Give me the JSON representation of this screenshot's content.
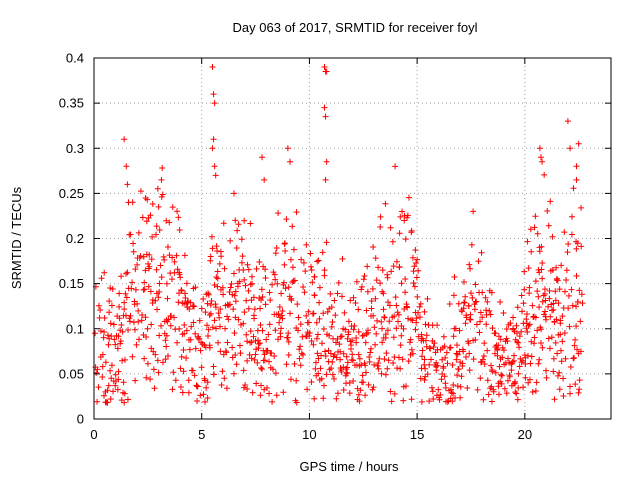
{
  "chart_data": {
    "type": "scatter",
    "title": "Day 063 of 2017, SRMTID for receiver foyl",
    "xlabel": "GPS time / hours",
    "ylabel": "SRMTID / TECUs",
    "xlim": [
      0,
      24
    ],
    "ylim": [
      0,
      0.4
    ],
    "x_ticks": [
      "0",
      "5",
      "10",
      "15",
      "20"
    ],
    "y_ticks": [
      "0",
      "0.05",
      "0.1",
      "0.15",
      "0.2",
      "0.25",
      "0.3",
      "0.35",
      "0.4"
    ],
    "grid": true,
    "marker": "+",
    "color": "#ff0000",
    "profile": [
      {
        "x": 0.0,
        "y": 0.075
      },
      {
        "x": 0.5,
        "y": 0.08
      },
      {
        "x": 1.0,
        "y": 0.075
      },
      {
        "x": 1.5,
        "y": 0.12
      },
      {
        "x": 2.0,
        "y": 0.13
      },
      {
        "x": 2.5,
        "y": 0.14
      },
      {
        "x": 3.0,
        "y": 0.16
      },
      {
        "x": 3.5,
        "y": 0.14
      },
      {
        "x": 4.0,
        "y": 0.12
      },
      {
        "x": 4.5,
        "y": 0.08
      },
      {
        "x": 5.0,
        "y": 0.09
      },
      {
        "x": 5.5,
        "y": 0.12
      },
      {
        "x": 6.0,
        "y": 0.12
      },
      {
        "x": 6.5,
        "y": 0.12
      },
      {
        "x": 7.0,
        "y": 0.12
      },
      {
        "x": 7.5,
        "y": 0.1
      },
      {
        "x": 8.0,
        "y": 0.1
      },
      {
        "x": 8.5,
        "y": 0.11
      },
      {
        "x": 9.0,
        "y": 0.12
      },
      {
        "x": 9.5,
        "y": 0.11
      },
      {
        "x": 10.0,
        "y": 0.1
      },
      {
        "x": 10.5,
        "y": 0.1
      },
      {
        "x": 11.0,
        "y": 0.09
      },
      {
        "x": 11.5,
        "y": 0.085
      },
      {
        "x": 12.0,
        "y": 0.08
      },
      {
        "x": 12.5,
        "y": 0.09
      },
      {
        "x": 13.0,
        "y": 0.11
      },
      {
        "x": 13.5,
        "y": 0.12
      },
      {
        "x": 14.0,
        "y": 0.13
      },
      {
        "x": 14.5,
        "y": 0.14
      },
      {
        "x": 15.0,
        "y": 0.11
      },
      {
        "x": 15.5,
        "y": 0.07
      },
      {
        "x": 16.0,
        "y": 0.05
      },
      {
        "x": 16.5,
        "y": 0.06
      },
      {
        "x": 17.0,
        "y": 0.09
      },
      {
        "x": 17.5,
        "y": 0.11
      },
      {
        "x": 18.0,
        "y": 0.1
      },
      {
        "x": 18.5,
        "y": 0.08
      },
      {
        "x": 19.0,
        "y": 0.065
      },
      {
        "x": 19.5,
        "y": 0.06
      },
      {
        "x": 20.0,
        "y": 0.1
      },
      {
        "x": 20.5,
        "y": 0.13
      },
      {
        "x": 21.0,
        "y": 0.14
      },
      {
        "x": 21.5,
        "y": 0.1
      },
      {
        "x": 22.0,
        "y": 0.15
      },
      {
        "x": 22.5,
        "y": 0.14
      }
    ],
    "spikes": [
      {
        "x": 1.4,
        "y": 0.31
      },
      {
        "x": 1.5,
        "y": 0.28
      },
      {
        "x": 1.55,
        "y": 0.26
      },
      {
        "x": 1.6,
        "y": 0.24
      },
      {
        "x": 3.0,
        "y": 0.235
      },
      {
        "x": 5.5,
        "y": 0.39
      },
      {
        "x": 5.55,
        "y": 0.36
      },
      {
        "x": 5.6,
        "y": 0.35
      },
      {
        "x": 5.55,
        "y": 0.31
      },
      {
        "x": 5.5,
        "y": 0.3
      },
      {
        "x": 5.6,
        "y": 0.28
      },
      {
        "x": 5.65,
        "y": 0.27
      },
      {
        "x": 7.8,
        "y": 0.29
      },
      {
        "x": 7.9,
        "y": 0.265
      },
      {
        "x": 9.0,
        "y": 0.3
      },
      {
        "x": 9.1,
        "y": 0.285
      },
      {
        "x": 10.7,
        "y": 0.39
      },
      {
        "x": 10.75,
        "y": 0.385
      },
      {
        "x": 10.8,
        "y": 0.385
      },
      {
        "x": 10.7,
        "y": 0.345
      },
      {
        "x": 10.75,
        "y": 0.335
      },
      {
        "x": 10.8,
        "y": 0.285
      },
      {
        "x": 10.75,
        "y": 0.265
      },
      {
        "x": 20.7,
        "y": 0.3
      },
      {
        "x": 20.75,
        "y": 0.29
      },
      {
        "x": 20.8,
        "y": 0.285
      },
      {
        "x": 22.0,
        "y": 0.33
      },
      {
        "x": 22.1,
        "y": 0.3
      },
      {
        "x": 22.5,
        "y": 0.305
      },
      {
        "x": 22.4,
        "y": 0.28
      },
      {
        "x": 22.4,
        "y": 0.265
      },
      {
        "x": 17.6,
        "y": 0.23
      },
      {
        "x": 14.4,
        "y": 0.22
      },
      {
        "x": 6.5,
        "y": 0.25
      }
    ]
  }
}
